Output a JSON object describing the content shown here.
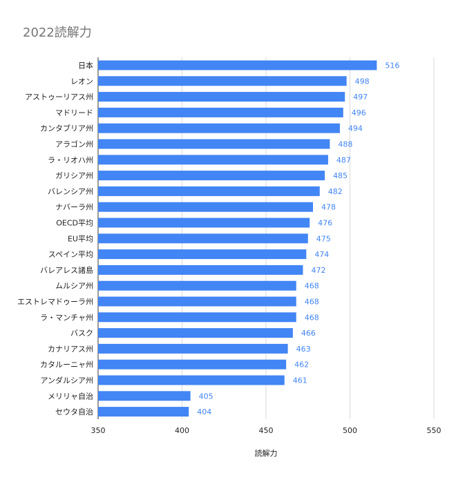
{
  "chart_data": {
    "type": "bar",
    "orientation": "horizontal",
    "title": "2022読解力",
    "xlabel": "読解力",
    "ylabel": "",
    "xlim": [
      350,
      550
    ],
    "xticks": [
      "350",
      "400",
      "450",
      "500",
      "550"
    ],
    "grid": true,
    "legend": "none",
    "bar_color": "#4285f4",
    "categories": [
      "日本",
      "レオン",
      "アストゥーリアス州",
      "マドリード",
      "カンタブリア州",
      "アラゴン州",
      "ラ・リオハ州",
      "ガリシア州",
      "バレンシア州",
      "ナバーラ州",
      "OECD平均",
      "EU平均",
      "スペイン平均",
      "バレアレス諸島",
      "ムルシア州",
      "エストレマドゥーラ州",
      "ラ・マンチャ州",
      "バスク",
      "カナリアス州",
      "カタルーニャ州",
      "アンダルシア州",
      "メリリャ自治",
      "セウタ自治"
    ],
    "values": [
      516,
      498,
      497,
      496,
      494,
      488,
      487,
      485,
      482,
      478,
      476,
      475,
      474,
      472,
      468,
      468,
      468,
      466,
      463,
      462,
      461,
      405,
      404
    ],
    "value_labels": [
      "516",
      "498",
      "497",
      "496",
      "494",
      "488",
      "487",
      "485",
      "482",
      "478",
      "476",
      "475",
      "474",
      "472",
      "468",
      "468",
      "468",
      "466",
      "463",
      "462",
      "461",
      "405",
      "404"
    ]
  }
}
